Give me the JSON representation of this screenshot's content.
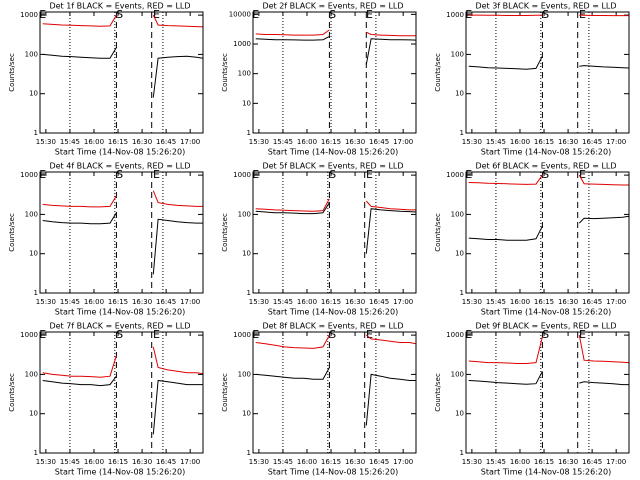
{
  "chart_data": [
    {
      "type": "line",
      "title": "Det 1f BLACK = Events, RED = LLD",
      "xlabel": "Start Time (14-Nov-08 15:26:20)",
      "ylabel": "Counts/sec",
      "x": [
        "15:28",
        "15:34",
        "15:40",
        "15:46",
        "15:52",
        "15:58",
        "16:04",
        "16:10",
        "16:14",
        "16:25",
        "16:37",
        "16:40",
        "16:46",
        "16:52",
        "16:58",
        "17:04",
        "17:08"
      ],
      "xlim": [
        "15:26:20",
        "17:08"
      ],
      "xticks": [
        "15:30",
        "15:45",
        "16:00",
        "16:15",
        "16:30",
        "16:45",
        "17:00"
      ],
      "ylim": [
        1,
        1200
      ],
      "yticks": [
        1,
        10,
        100,
        1000
      ],
      "log_y": true,
      "dotted_lines": [
        "15:45",
        "16:13",
        "16:43"
      ],
      "dashed_lines": [
        "16:14",
        "16:36"
      ],
      "annotations": [
        {
          "text": "E",
          "x": "15:28"
        },
        {
          "text": "S",
          "x": "16:16"
        },
        {
          "text": "E",
          "x": "16:39"
        }
      ],
      "series": [
        {
          "color": "#000000",
          "values": [
            100,
            95,
            90,
            88,
            85,
            82,
            80,
            80,
            150,
            null,
            8,
            80,
            85,
            88,
            90,
            85,
            80
          ]
        },
        {
          "color": "#e00000",
          "values": [
            600,
            580,
            560,
            550,
            540,
            530,
            520,
            530,
            1000,
            null,
            1000,
            560,
            540,
            530,
            520,
            510,
            500
          ]
        }
      ]
    },
    {
      "type": "line",
      "title": "Det 2f BLACK = Events, RED = LLD",
      "xlabel": "Start Time (14-Nov-08 15:26:20)",
      "ylabel": "Counts/sec",
      "x": [
        "15:28",
        "15:34",
        "15:40",
        "15:46",
        "15:52",
        "15:58",
        "16:04",
        "16:10",
        "16:14",
        "16:25",
        "16:37",
        "16:40",
        "16:46",
        "16:52",
        "16:58",
        "17:04",
        "17:08"
      ],
      "xlim": [
        "15:26:20",
        "17:08"
      ],
      "xticks": [
        "15:30",
        "15:45",
        "16:00",
        "16:15",
        "16:30",
        "16:45",
        "17:00"
      ],
      "ylim": [
        1,
        12000
      ],
      "yticks": [
        1,
        10,
        100,
        1000,
        10000
      ],
      "log_y": true,
      "dotted_lines": [
        "15:45",
        "16:15",
        "16:43"
      ],
      "dashed_lines": [
        "16:14",
        "16:37"
      ],
      "annotations": [
        {
          "text": "E",
          "x": "15:28"
        },
        {
          "text": "S",
          "x": "16:16"
        },
        {
          "text": "E",
          "x": "16:39"
        }
      ],
      "series": [
        {
          "color": "#000000",
          "values": [
            1500,
            1450,
            1400,
            1400,
            1380,
            1350,
            1350,
            1400,
            1800,
            null,
            200,
            1500,
            1450,
            1400,
            1400,
            1380,
            1350
          ]
        },
        {
          "color": "#e00000",
          "values": [
            2200,
            2100,
            2100,
            2050,
            2000,
            2000,
            2000,
            2100,
            3000,
            null,
            2500,
            2100,
            2000,
            1950,
            1900,
            1900,
            1900
          ]
        }
      ]
    },
    {
      "type": "line",
      "title": "Det 3f BLACK = Events, RED = LLD",
      "xlabel": "Start Time (14-Nov-08 15:26:20)",
      "ylabel": "Counts/sec",
      "x": [
        "15:28",
        "15:34",
        "15:40",
        "15:46",
        "15:52",
        "15:58",
        "16:04",
        "16:10",
        "16:14",
        "16:25",
        "16:37",
        "16:40",
        "16:46",
        "16:52",
        "16:58",
        "17:04",
        "17:08"
      ],
      "xlim": [
        "15:26:20",
        "17:08"
      ],
      "xticks": [
        "15:30",
        "15:45",
        "16:00",
        "16:15",
        "16:30",
        "16:45",
        "17:00"
      ],
      "ylim": [
        1,
        1200
      ],
      "yticks": [
        1,
        10,
        100,
        1000
      ],
      "log_y": true,
      "dotted_lines": [
        "15:45",
        "16:13",
        "16:43"
      ],
      "dashed_lines": [
        "16:14",
        "16:36"
      ],
      "annotations": [
        {
          "text": "E",
          "x": "15:28"
        },
        {
          "text": "S",
          "x": "16:16"
        },
        {
          "text": "E",
          "x": "16:39"
        }
      ],
      "series": [
        {
          "color": "#000000",
          "values": [
            50,
            48,
            46,
            45,
            44,
            43,
            42,
            44,
            90,
            null,
            50,
            52,
            50,
            48,
            47,
            46,
            45
          ]
        },
        {
          "color": "#e00000",
          "values": [
            1000,
            1000,
            990,
            990,
            980,
            980,
            980,
            990,
            1000,
            null,
            1000,
            990,
            980,
            980,
            970,
            970,
            970
          ]
        }
      ]
    },
    {
      "type": "line",
      "title": "Det 4f BLACK = Events, RED = LLD",
      "xlabel": "Start Time (14-Nov-08 15:26:20)",
      "ylabel": "Counts/sec",
      "x": [
        "15:28",
        "15:34",
        "15:40",
        "15:46",
        "15:52",
        "15:58",
        "16:04",
        "16:10",
        "16:14",
        "16:25",
        "16:37",
        "16:40",
        "16:46",
        "16:52",
        "16:58",
        "17:04",
        "17:08"
      ],
      "xlim": [
        "15:26:20",
        "17:08"
      ],
      "xticks": [
        "15:30",
        "15:45",
        "16:00",
        "16:15",
        "16:30",
        "16:45",
        "17:00"
      ],
      "ylim": [
        1,
        1200
      ],
      "yticks": [
        1,
        10,
        100,
        1000
      ],
      "log_y": true,
      "dotted_lines": [
        "15:45",
        "16:13",
        "16:43"
      ],
      "dashed_lines": [
        "16:14",
        "16:36"
      ],
      "annotations": [
        {
          "text": "E",
          "x": "15:28"
        },
        {
          "text": "S",
          "x": "16:16"
        },
        {
          "text": "E",
          "x": "16:39"
        }
      ],
      "series": [
        {
          "color": "#000000",
          "values": [
            70,
            65,
            62,
            60,
            60,
            58,
            58,
            60,
            110,
            null,
            3,
            75,
            70,
            65,
            62,
            60,
            60
          ]
        },
        {
          "color": "#e00000",
          "values": [
            180,
            170,
            165,
            160,
            160,
            155,
            155,
            160,
            300,
            null,
            400,
            200,
            180,
            170,
            165,
            160,
            160
          ]
        }
      ]
    },
    {
      "type": "line",
      "title": "Det 5f BLACK = Events, RED = LLD",
      "xlabel": "Start Time (14-Nov-08 15:26:20)",
      "ylabel": "Counts/sec",
      "x": [
        "15:28",
        "15:34",
        "15:40",
        "15:46",
        "15:52",
        "15:58",
        "16:04",
        "16:10",
        "16:14",
        "16:25",
        "16:37",
        "16:40",
        "16:46",
        "16:52",
        "16:58",
        "17:04",
        "17:08"
      ],
      "xlim": [
        "15:26:20",
        "17:08"
      ],
      "xticks": [
        "15:30",
        "15:45",
        "16:00",
        "16:15",
        "16:30",
        "16:45",
        "17:00"
      ],
      "ylim": [
        1,
        1200
      ],
      "yticks": [
        1,
        10,
        100,
        1000
      ],
      "log_y": true,
      "dotted_lines": [
        "15:45",
        "16:13",
        "16:43"
      ],
      "dashed_lines": [
        "16:14",
        "16:36"
      ],
      "annotations": [
        {
          "text": "E",
          "x": "15:28"
        },
        {
          "text": "S",
          "x": "16:16"
        },
        {
          "text": "E",
          "x": "16:39"
        }
      ],
      "series": [
        {
          "color": "#000000",
          "values": [
            120,
            115,
            110,
            110,
            108,
            105,
            105,
            110,
            200,
            null,
            10,
            140,
            130,
            125,
            120,
            118,
            115
          ]
        },
        {
          "color": "#e00000",
          "values": [
            140,
            135,
            130,
            128,
            125,
            122,
            120,
            125,
            250,
            null,
            220,
            160,
            150,
            140,
            135,
            130,
            130
          ]
        }
      ]
    },
    {
      "type": "line",
      "title": "Det 6f BLACK = Events, RED = LLD",
      "xlabel": "Start Time (14-Nov-08 15:26:20)",
      "ylabel": "Counts/sec",
      "x": [
        "15:28",
        "15:34",
        "15:40",
        "15:46",
        "15:52",
        "15:58",
        "16:04",
        "16:10",
        "16:14",
        "16:25",
        "16:37",
        "16:40",
        "16:46",
        "16:52",
        "16:58",
        "17:04",
        "17:08"
      ],
      "xlim": [
        "15:26:20",
        "17:08"
      ],
      "xticks": [
        "15:30",
        "15:45",
        "16:00",
        "16:15",
        "16:30",
        "16:45",
        "17:00"
      ],
      "ylim": [
        1,
        1200
      ],
      "yticks": [
        1,
        10,
        100,
        1000
      ],
      "log_y": true,
      "dotted_lines": [
        "15:45",
        "16:13",
        "16:43"
      ],
      "dashed_lines": [
        "16:14",
        "16:36"
      ],
      "annotations": [
        {
          "text": "E",
          "x": "15:28"
        },
        {
          "text": "S",
          "x": "16:16"
        },
        {
          "text": "E",
          "x": "16:39"
        }
      ],
      "series": [
        {
          "color": "#000000",
          "values": [
            25,
            24,
            23,
            23,
            22,
            22,
            22,
            24,
            50,
            null,
            60,
            80,
            78,
            80,
            82,
            85,
            90
          ]
        },
        {
          "color": "#e00000",
          "values": [
            650,
            640,
            620,
            610,
            600,
            590,
            580,
            590,
            1000,
            null,
            1000,
            600,
            590,
            580,
            570,
            560,
            560
          ]
        }
      ]
    },
    {
      "type": "line",
      "title": "Det 7f BLACK = Events, RED = LLD",
      "xlabel": "Start Time (14-Nov-08 15:26:20)",
      "ylabel": "Counts/sec",
      "x": [
        "15:28",
        "15:34",
        "15:40",
        "15:46",
        "15:52",
        "15:58",
        "16:04",
        "16:10",
        "16:14",
        "16:25",
        "16:37",
        "16:40",
        "16:46",
        "16:52",
        "16:58",
        "17:04",
        "17:08"
      ],
      "xlim": [
        "15:26:20",
        "17:08"
      ],
      "xticks": [
        "15:30",
        "15:45",
        "16:00",
        "16:15",
        "16:30",
        "16:45",
        "17:00"
      ],
      "ylim": [
        1,
        1200
      ],
      "yticks": [
        1,
        10,
        100,
        1000
      ],
      "log_y": true,
      "dotted_lines": [
        "15:45",
        "16:13",
        "16:43"
      ],
      "dashed_lines": [
        "16:14",
        "16:36"
      ],
      "annotations": [
        {
          "text": "E",
          "x": "15:28"
        },
        {
          "text": "S",
          "x": "16:16"
        },
        {
          "text": "E",
          "x": "16:39"
        }
      ],
      "series": [
        {
          "color": "#000000",
          "values": [
            70,
            65,
            60,
            58,
            55,
            55,
            52,
            55,
            90,
            null,
            3,
            70,
            65,
            60,
            55,
            55,
            55
          ]
        },
        {
          "color": "#e00000",
          "values": [
            110,
            100,
            95,
            90,
            90,
            88,
            85,
            90,
            300,
            null,
            500,
            150,
            130,
            120,
            110,
            110,
            105
          ]
        }
      ]
    },
    {
      "type": "line",
      "title": "Det 8f BLACK = Events, RED = LLD",
      "xlabel": "Start Time (14-Nov-08 15:26:20)",
      "ylabel": "Counts/sec",
      "x": [
        "15:28",
        "15:34",
        "15:40",
        "15:46",
        "15:52",
        "15:58",
        "16:04",
        "16:10",
        "16:14",
        "16:25",
        "16:37",
        "16:40",
        "16:46",
        "16:52",
        "16:58",
        "17:04",
        "17:08"
      ],
      "xlim": [
        "15:26:20",
        "17:08"
      ],
      "xticks": [
        "15:30",
        "15:45",
        "16:00",
        "16:15",
        "16:30",
        "16:45",
        "17:00"
      ],
      "ylim": [
        1,
        1200
      ],
      "yticks": [
        1,
        10,
        100,
        1000
      ],
      "log_y": true,
      "dotted_lines": [
        "15:45",
        "16:13",
        "16:43"
      ],
      "dashed_lines": [
        "16:14",
        "16:36"
      ],
      "annotations": [
        {
          "text": "E",
          "x": "15:28"
        },
        {
          "text": "S",
          "x": "16:16"
        },
        {
          "text": "E",
          "x": "16:39"
        }
      ],
      "series": [
        {
          "color": "#000000",
          "values": [
            100,
            95,
            90,
            85,
            80,
            80,
            75,
            75,
            150,
            null,
            5,
            100,
            90,
            80,
            75,
            70,
            70
          ]
        },
        {
          "color": "#e00000",
          "values": [
            650,
            600,
            550,
            500,
            480,
            470,
            460,
            500,
            1000,
            null,
            1000,
            800,
            750,
            700,
            650,
            650,
            600
          ]
        }
      ]
    },
    {
      "type": "line",
      "title": "Det 9f BLACK = Events, RED = LLD",
      "xlabel": "Start Time (14-Nov-08 15:26:20)",
      "ylabel": "Counts/sec",
      "x": [
        "15:28",
        "15:34",
        "15:40",
        "15:46",
        "15:52",
        "15:58",
        "16:04",
        "16:10",
        "16:14",
        "16:25",
        "16:37",
        "16:40",
        "16:46",
        "16:52",
        "16:58",
        "17:04",
        "17:08"
      ],
      "xlim": [
        "15:26:20",
        "17:08"
      ],
      "xticks": [
        "15:30",
        "15:45",
        "16:00",
        "16:15",
        "16:30",
        "16:45",
        "17:00"
      ],
      "ylim": [
        1,
        1200
      ],
      "yticks": [
        1,
        10,
        100,
        1000
      ],
      "log_y": true,
      "dotted_lines": [
        "15:45",
        "16:13",
        "16:43"
      ],
      "dashed_lines": [
        "16:14",
        "16:36"
      ],
      "annotations": [
        {
          "text": "E",
          "x": "15:28"
        },
        {
          "text": "S",
          "x": "16:16"
        },
        {
          "text": "E",
          "x": "16:39"
        }
      ],
      "series": [
        {
          "color": "#000000",
          "values": [
            70,
            68,
            65,
            62,
            60,
            58,
            56,
            58,
            120,
            null,
            60,
            65,
            62,
            60,
            58,
            55,
            55
          ]
        },
        {
          "color": "#e00000",
          "values": [
            220,
            210,
            200,
            200,
            195,
            190,
            190,
            200,
            900,
            null,
            1000,
            230,
            220,
            215,
            210,
            205,
            200
          ]
        }
      ]
    }
  ]
}
